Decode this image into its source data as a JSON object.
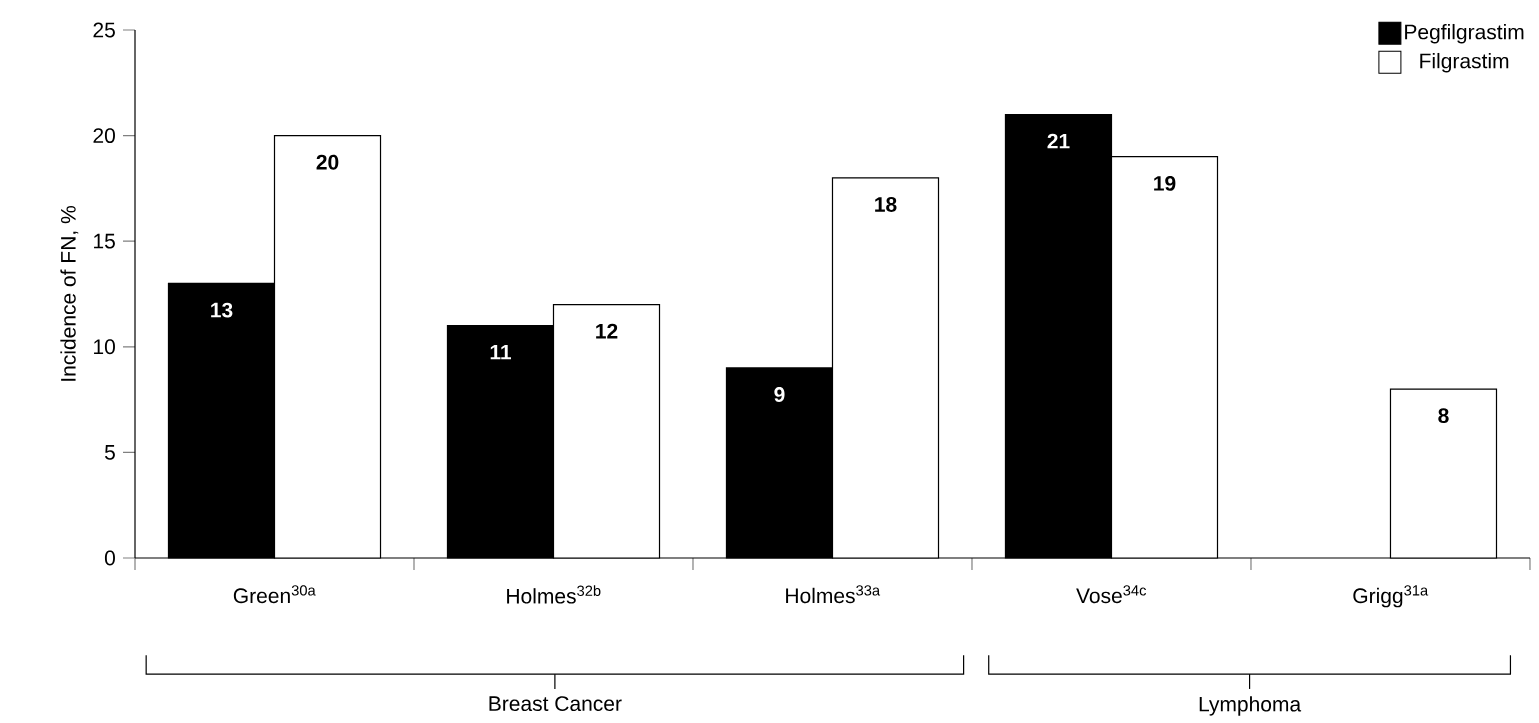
{
  "chart_data": {
    "type": "bar",
    "ylabel": "Incidence of FN, %",
    "categories": [
      "Green$^{30a}$",
      "Holmes$^{32b}$",
      "Holmes$^{33a}$",
      "Vose$^{34c}$",
      "Grigg$^{31a}$"
    ],
    "series": [
      {
        "name": "Pegfilgrastim",
        "color": "#000000",
        "values": [
          13,
          11,
          9,
          21,
          null
        ]
      },
      {
        "name": "Filgrastim",
        "color": "#ffffff",
        "values": [
          20,
          12,
          18,
          19,
          8
        ]
      }
    ],
    "ylim": [
      0,
      25
    ],
    "yticks": [
      0,
      5,
      10,
      15,
      20,
      25
    ],
    "data_labels": true,
    "legend": "top right",
    "annotations": [
      "Breast Cancer",
      "Lymphoma"
    ]
  }
}
